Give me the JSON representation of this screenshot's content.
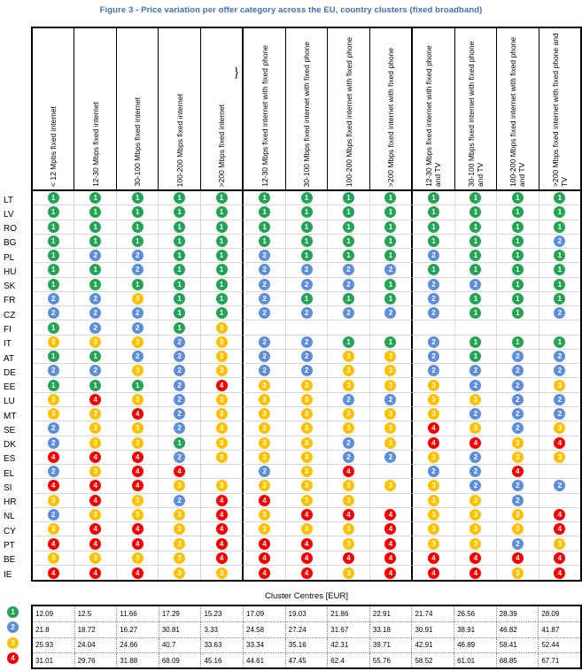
{
  "chart_data": {
    "type": "heatmap",
    "title": "Figure 3 - Price variation per offer category across the EU, country clusters (fixed broadband)",
    "legend": "cell value = price cluster 1-4",
    "cluster_colors": [
      "#23A455",
      "#5C8EDC",
      "#FFC000",
      "#F80000"
    ],
    "columns": [
      "< 12 Mpbs fixed internet",
      "12-30 Mbps fixed internet",
      "30-100 Mbps fixed internet",
      "100-200 Mbps fixed internet",
      ">200 Mbps fixed internet",
      "12-30 Mbps fixed internet with fixed phone",
      "30-100 Mbps fixed internet with fixed phone",
      "100-200 Mbps fixed internet with fixed phone",
      ">200 Mbps fixed internet with fixed phone",
      "12-30 Mbps fixed internet with fixed phone and TV",
      "30-100 Mbps fixed internet with fixed phone and TV",
      "100-200 Mbps fixed internet with fixed phone and TV",
      ">200 Mbps fixed internet with fixed phone and TV"
    ],
    "rows": [
      {
        "code": "LT",
        "clusters": [
          1,
          1,
          1,
          1,
          1,
          1,
          1,
          1,
          1,
          1,
          1,
          1,
          1
        ]
      },
      {
        "code": "LV",
        "clusters": [
          1,
          1,
          1,
          1,
          1,
          1,
          1,
          1,
          1,
          1,
          1,
          1,
          1
        ]
      },
      {
        "code": "RO",
        "clusters": [
          1,
          1,
          1,
          1,
          1,
          1,
          1,
          1,
          1,
          1,
          1,
          1,
          1
        ]
      },
      {
        "code": "BG",
        "clusters": [
          1,
          1,
          1,
          1,
          1,
          1,
          1,
          1,
          1,
          1,
          1,
          1,
          2
        ]
      },
      {
        "code": "PL",
        "clusters": [
          1,
          2,
          2,
          1,
          1,
          2,
          1,
          1,
          1,
          2,
          1,
          1,
          1
        ]
      },
      {
        "code": "HU",
        "clusters": [
          1,
          1,
          2,
          1,
          1,
          2,
          2,
          2,
          2,
          1,
          1,
          1,
          1
        ]
      },
      {
        "code": "SK",
        "clusters": [
          1,
          1,
          1,
          1,
          1,
          2,
          2,
          2,
          1,
          2,
          2,
          1,
          1
        ]
      },
      {
        "code": "FR",
        "clusters": [
          2,
          2,
          3,
          1,
          1,
          2,
          1,
          1,
          1,
          2,
          1,
          1,
          1
        ]
      },
      {
        "code": "CZ",
        "clusters": [
          2,
          2,
          2,
          1,
          1,
          2,
          2,
          2,
          2,
          2,
          1,
          1,
          2
        ]
      },
      {
        "code": "FI",
        "clusters": [
          1,
          2,
          2,
          1,
          3,
          null,
          null,
          null,
          null,
          null,
          null,
          null,
          null
        ]
      },
      {
        "code": "IT",
        "clusters": [
          3,
          3,
          3,
          2,
          3,
          2,
          2,
          1,
          1,
          2,
          1,
          1,
          1
        ]
      },
      {
        "code": "AT",
        "clusters": [
          1,
          1,
          2,
          2,
          3,
          2,
          2,
          3,
          3,
          2,
          1,
          2,
          2
        ]
      },
      {
        "code": "DE",
        "clusters": [
          2,
          2,
          3,
          2,
          3,
          2,
          2,
          3,
          3,
          2,
          2,
          2,
          2
        ]
      },
      {
        "code": "EE",
        "clusters": [
          1,
          1,
          1,
          2,
          4,
          3,
          3,
          3,
          3,
          3,
          2,
          2,
          3
        ]
      },
      {
        "code": "LU",
        "clusters": [
          3,
          4,
          3,
          2,
          3,
          3,
          3,
          2,
          2,
          3,
          3,
          2,
          2
        ]
      },
      {
        "code": "MT",
        "clusters": [
          3,
          3,
          4,
          2,
          3,
          3,
          3,
          3,
          3,
          3,
          2,
          2,
          2
        ]
      },
      {
        "code": "SE",
        "clusters": [
          2,
          3,
          3,
          2,
          3,
          3,
          3,
          3,
          3,
          4,
          3,
          2,
          3
        ]
      },
      {
        "code": "DK",
        "clusters": [
          2,
          3,
          3,
          1,
          3,
          3,
          3,
          2,
          3,
          4,
          4,
          3,
          4
        ]
      },
      {
        "code": "ES",
        "clusters": [
          4,
          4,
          4,
          2,
          3,
          3,
          3,
          2,
          2,
          3,
          2,
          3,
          3
        ]
      },
      {
        "code": "EL",
        "clusters": [
          2,
          3,
          4,
          4,
          null,
          2,
          3,
          4,
          null,
          2,
          2,
          4,
          null
        ]
      },
      {
        "code": "SI",
        "clusters": [
          4,
          4,
          4,
          3,
          3,
          3,
          3,
          3,
          3,
          3,
          2,
          2,
          2
        ]
      },
      {
        "code": "HR",
        "clusters": [
          3,
          4,
          3,
          2,
          4,
          4,
          3,
          3,
          null,
          3,
          3,
          2,
          null
        ]
      },
      {
        "code": "NL",
        "clusters": [
          2,
          3,
          3,
          3,
          4,
          3,
          4,
          4,
          4,
          3,
          3,
          3,
          4
        ]
      },
      {
        "code": "CY",
        "clusters": [
          3,
          4,
          4,
          3,
          4,
          3,
          3,
          3,
          4,
          3,
          3,
          3,
          4
        ]
      },
      {
        "code": "PT",
        "clusters": [
          4,
          4,
          4,
          3,
          4,
          4,
          4,
          3,
          4,
          3,
          3,
          2,
          3
        ]
      },
      {
        "code": "BE",
        "clusters": [
          3,
          3,
          3,
          3,
          4,
          4,
          4,
          4,
          4,
          4,
          4,
          4,
          4
        ]
      },
      {
        "code": "IE",
        "clusters": [
          4,
          4,
          4,
          3,
          3,
          4,
          4,
          3,
          4,
          4,
          4,
          3,
          4
        ]
      }
    ],
    "cluster_centres": {
      "title": "Cluster Centres [EUR]",
      "rows": [
        {
          "cluster": 1,
          "values": [
            "12.09",
            "12.5",
            "11.66",
            "17.29",
            "15.23",
            "17.09",
            "19.03",
            "21.86",
            "22.91",
            "21.74",
            "26.56",
            "28.39",
            "28.09"
          ]
        },
        {
          "cluster": 2,
          "values": [
            "21.8",
            "18.72",
            "16.27",
            "30.81",
            "3.33",
            "24.58",
            "27.24",
            "31.67",
            "33.18",
            "30.91",
            "38.91",
            "46.82",
            "41.87"
          ]
        },
        {
          "cluster": 3,
          "values": [
            "25.93",
            "24.04",
            "24.66",
            "40.7",
            "33.63",
            "33.34",
            "35.16",
            "42.31",
            "39.71",
            "42.91",
            "46.89",
            "58.41",
            "52.44"
          ]
        },
        {
          "cluster": 4,
          "values": [
            "31.01",
            "29.76",
            "31.88",
            "68.09",
            "45.16",
            "44.61",
            "47.45",
            "62.4",
            "55.76",
            "58.52",
            "61.01",
            "68.85",
            "67.71"
          ]
        }
      ]
    }
  },
  "annotation_brace": "}",
  "colors": {
    "title_text": "#3E6EB5",
    "cluster1": "#23A455",
    "cluster2": "#5C8EDC",
    "cluster3": "#FFC000",
    "cluster4": "#F80000"
  }
}
